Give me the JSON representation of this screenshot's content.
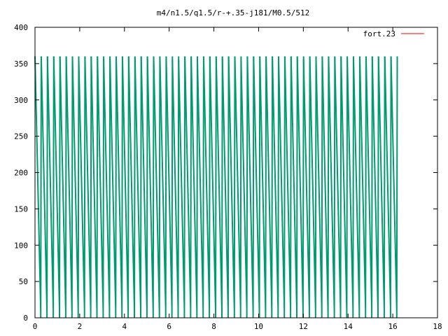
{
  "chart_data": {
    "type": "line",
    "title": "m4/n1.5/q1.5/r-+.35-j181/M0.5/512",
    "xlabel": "",
    "ylabel": "",
    "xlim": [
      0,
      18
    ],
    "ylim": [
      0,
      400
    ],
    "x_ticks": [
      "0",
      "2",
      "4",
      "6",
      "8",
      "10",
      "12",
      "14",
      "16",
      "18"
    ],
    "y_ticks": [
      "0",
      "50",
      "100",
      "150",
      "200",
      "250",
      "300",
      "350",
      "400"
    ],
    "grid": false,
    "legend_position": "top-right",
    "series": [
      {
        "name": "fort.23",
        "color": "#ff0000",
        "pattern": "sawtooth",
        "wrap_range": [
          0,
          360
        ],
        "x_start": 0.0,
        "x_end": 16.2,
        "approx_cycles": 58
      }
    ],
    "overlay_colors": [
      "#ff0000",
      "#00a000",
      "#0000ff",
      "#ff00ff",
      "#00c0c0",
      "#a0522d",
      "#ffa500",
      "#228b22"
    ],
    "dominant_color": "#009a70"
  }
}
